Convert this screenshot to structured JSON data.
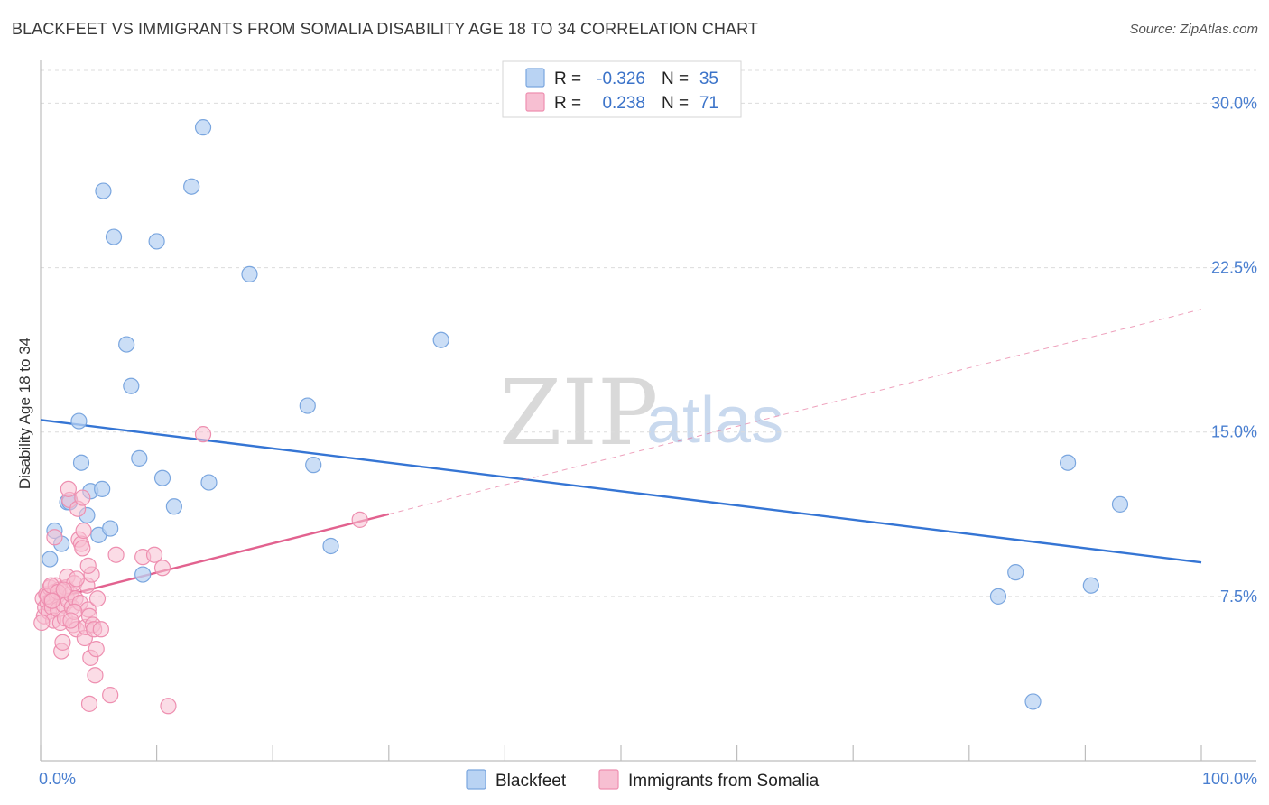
{
  "header": {
    "title": "BLACKFEET VS IMMIGRANTS FROM SOMALIA DISABILITY AGE 18 TO 34 CORRELATION CHART",
    "source": "Source: ZipAtlas.com"
  },
  "watermark": {
    "zip": "ZIP",
    "atlas": "atlas"
  },
  "colors": {
    "blue_fill": "#b9d3f3",
    "blue_stroke": "#7aa6df",
    "blue_line": "#3575d4",
    "pink_fill": "#f7bfd2",
    "pink_stroke": "#ee8fb0",
    "pink_line": "#e2628f",
    "grid": "#dcdcdc",
    "axis_label": "#4a7fd0"
  },
  "chart_data": {
    "type": "scatter",
    "title": "BLACKFEET VS IMMIGRANTS FROM SOMALIA DISABILITY AGE 18 TO 34 CORRELATION CHART",
    "xlabel": "",
    "ylabel": "Disability Age 18 to 34",
    "xlim": [
      0,
      100
    ],
    "ylim": [
      0,
      31.5
    ],
    "x_tick_labels": [
      "0.0%",
      "100.0%"
    ],
    "y_ticks": [
      7.5,
      15.0,
      22.5,
      30.0
    ],
    "y_tick_labels": [
      "7.5%",
      "15.0%",
      "22.5%",
      "30.0%"
    ],
    "grid": true,
    "legend": {
      "position": "top-center",
      "entries": [
        {
          "series": "Blackfeet",
          "r_label": "R =",
          "r_value": "-0.326",
          "n_label": "N =",
          "n_value": "35"
        },
        {
          "series": "Immigrants from Somalia",
          "r_label": "R =",
          "r_value": "0.238",
          "n_label": "N =",
          "n_value": "71"
        }
      ]
    },
    "series": [
      {
        "name": "Blackfeet",
        "color": "blue",
        "trend": {
          "x0": 0,
          "y0": 15.55,
          "x1": 100,
          "y1": 9.05,
          "solid_until": 100
        },
        "points": [
          [
            0.8,
            9.2
          ],
          [
            1.2,
            10.5
          ],
          [
            1.8,
            9.9
          ],
          [
            2.3,
            11.8
          ],
          [
            3.5,
            13.6
          ],
          [
            3.3,
            15.5
          ],
          [
            4.0,
            11.2
          ],
          [
            4.3,
            12.3
          ],
          [
            5.0,
            10.3
          ],
          [
            6.0,
            10.6
          ],
          [
            5.4,
            26.0
          ],
          [
            6.3,
            23.9
          ],
          [
            7.4,
            19.0
          ],
          [
            7.8,
            17.1
          ],
          [
            8.5,
            13.8
          ],
          [
            8.8,
            8.5
          ],
          [
            10.0,
            23.7
          ],
          [
            10.5,
            12.9
          ],
          [
            11.5,
            11.6
          ],
          [
            13.0,
            26.2
          ],
          [
            14.0,
            28.9
          ],
          [
            14.5,
            12.7
          ],
          [
            18.0,
            22.2
          ],
          [
            23.0,
            16.2
          ],
          [
            23.5,
            13.5
          ],
          [
            25.0,
            9.8
          ],
          [
            34.5,
            19.2
          ],
          [
            82.5,
            7.5
          ],
          [
            84.0,
            8.6
          ],
          [
            85.5,
            2.7
          ],
          [
            88.5,
            13.6
          ],
          [
            90.5,
            8.0
          ],
          [
            93.0,
            11.7
          ],
          [
            2.5,
            11.8
          ],
          [
            5.3,
            12.4
          ]
        ]
      },
      {
        "name": "Immigrants from Somalia",
        "color": "pink",
        "trend": {
          "x0": 0,
          "y0": 7.25,
          "x1": 100,
          "y1": 20.6,
          "solid_until": 30
        },
        "points": [
          [
            0.2,
            7.4
          ],
          [
            0.3,
            6.6
          ],
          [
            0.4,
            7.0
          ],
          [
            0.5,
            7.6
          ],
          [
            0.6,
            7.2
          ],
          [
            0.7,
            6.8
          ],
          [
            0.8,
            7.9
          ],
          [
            0.9,
            7.3
          ],
          [
            1.0,
            7.0
          ],
          [
            1.1,
            6.4
          ],
          [
            1.2,
            7.7
          ],
          [
            1.3,
            8.0
          ],
          [
            1.4,
            7.5
          ],
          [
            1.5,
            6.9
          ],
          [
            1.6,
            7.8
          ],
          [
            1.7,
            6.3
          ],
          [
            1.8,
            5.0
          ],
          [
            1.9,
            5.4
          ],
          [
            2.0,
            7.1
          ],
          [
            2.1,
            6.5
          ],
          [
            2.2,
            7.9
          ],
          [
            2.3,
            8.4
          ],
          [
            2.4,
            7.3
          ],
          [
            2.5,
            11.9
          ],
          [
            2.6,
            7.6
          ],
          [
            2.7,
            7.0
          ],
          [
            2.8,
            6.2
          ],
          [
            2.9,
            8.1
          ],
          [
            3.0,
            7.4
          ],
          [
            3.1,
            6.0
          ],
          [
            3.2,
            11.5
          ],
          [
            3.3,
            10.1
          ],
          [
            3.4,
            7.2
          ],
          [
            3.5,
            9.9
          ],
          [
            3.6,
            12.0
          ],
          [
            3.7,
            10.5
          ],
          [
            3.8,
            5.6
          ],
          [
            3.9,
            6.1
          ],
          [
            4.0,
            8.0
          ],
          [
            4.1,
            6.9
          ],
          [
            4.2,
            6.6
          ],
          [
            4.3,
            4.7
          ],
          [
            4.4,
            8.5
          ],
          [
            4.5,
            6.2
          ],
          [
            4.6,
            6.0
          ],
          [
            4.7,
            3.9
          ],
          [
            4.8,
            5.1
          ],
          [
            4.9,
            7.4
          ],
          [
            0.1,
            6.3
          ],
          [
            0.6,
            7.5
          ],
          [
            1.2,
            10.2
          ],
          [
            2.4,
            12.4
          ],
          [
            3.1,
            8.3
          ],
          [
            3.6,
            9.7
          ],
          [
            4.1,
            8.9
          ],
          [
            0.9,
            8.0
          ],
          [
            5.2,
            6.0
          ],
          [
            6.0,
            3.0
          ],
          [
            6.5,
            9.4
          ],
          [
            8.8,
            9.3
          ],
          [
            9.8,
            9.4
          ],
          [
            10.5,
            8.8
          ],
          [
            11.0,
            2.5
          ],
          [
            14.0,
            14.9
          ],
          [
            27.5,
            11.0
          ],
          [
            4.2,
            2.6
          ],
          [
            1.5,
            7.7
          ],
          [
            2.0,
            7.8
          ],
          [
            2.9,
            6.8
          ],
          [
            1.0,
            7.3
          ],
          [
            2.6,
            6.4
          ]
        ]
      }
    ]
  },
  "bottom_legend": [
    {
      "label": "Blackfeet",
      "color": "blue"
    },
    {
      "label": "Immigrants from Somalia",
      "color": "pink"
    }
  ]
}
